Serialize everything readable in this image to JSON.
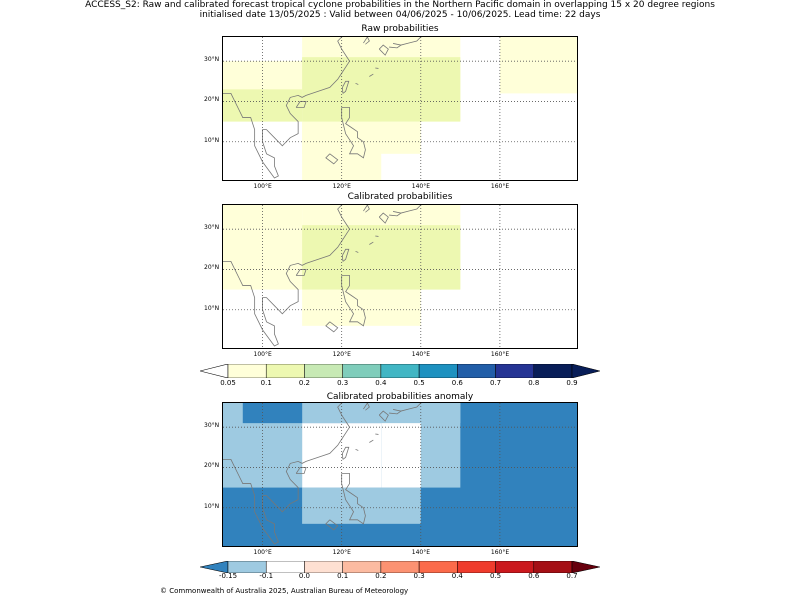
{
  "header": {
    "title_line1": "ACCESS_S2: Raw and calibrated forecast tropical cyclone probabilities in the Northern Pacific domain in overlapping 15 x 20 degree regions",
    "title_line2": "initialised date 13/05/2025 :  Valid between 04/06/2025 - 10/06/2025. Lead time: 22 days"
  },
  "maps": {
    "raw_title": "Raw probabilities",
    "calibrated_title": "Calibrated probabilities",
    "anomaly_title": "Calibrated probabilities anomaly",
    "lon_ticks": [
      "100°E",
      "120°E",
      "140°E",
      "160°E"
    ],
    "lat_ticks": [
      "30°N",
      "20°N",
      "10°N"
    ],
    "extent": {
      "lon": [
        90,
        180
      ],
      "lat": [
        0,
        36
      ]
    }
  },
  "colorbar_prob": {
    "labels": [
      "0.05",
      "0.1",
      "0.2",
      "0.3",
      "0.4",
      "0.5",
      "0.6",
      "0.7",
      "0.8",
      "0.9"
    ],
    "colors": [
      "#ffffd9",
      "#edf8b1",
      "#c7e9b4",
      "#7fcdbb",
      "#41b6c4",
      "#1d91c0",
      "#225ea8",
      "#253494",
      "#081d58"
    ],
    "under_color": "#ffffff",
    "over_color": "#081d58"
  },
  "colorbar_anom": {
    "labels": [
      "-0.15",
      "-0.1",
      "0.0",
      "0.1",
      "0.2",
      "0.3",
      "0.4",
      "0.5",
      "0.6",
      "0.7"
    ],
    "colors": [
      "#9ecae1",
      "#ffffff",
      "#fee0d2",
      "#fcbba1",
      "#fc9272",
      "#fb6a4a",
      "#ef3b2c",
      "#cb181d",
      "#a50f15"
    ],
    "under_color": "#3182bd",
    "over_color": "#67000d"
  },
  "copyright": "© Commonwealth of Australia 2025, Australian Bureau of Meteorology"
}
